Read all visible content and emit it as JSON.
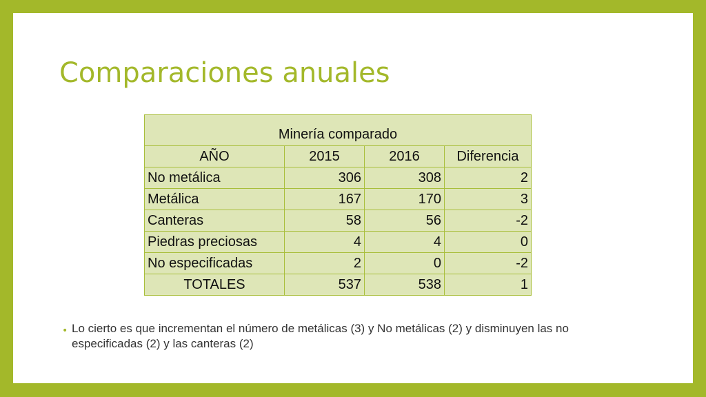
{
  "title": "Comparaciones anuales",
  "table": {
    "caption": "Minería  comparado",
    "headers": [
      "AÑO",
      "2015",
      "2016",
      "Diferencia"
    ],
    "rows": [
      {
        "label": "No metálica",
        "y2015": "306",
        "y2016": "308",
        "diff": "2"
      },
      {
        "label": "Metálica",
        "y2015": "167",
        "y2016": "170",
        "diff": "3"
      },
      {
        "label": "Canteras",
        "y2015": "58",
        "y2016": "56",
        "diff": "-2"
      },
      {
        "label": "Piedras preciosas",
        "y2015": "4",
        "y2016": "4",
        "diff": "0"
      },
      {
        "label": "No especificadas",
        "y2015": "2",
        "y2016": "0",
        "diff": "-2"
      }
    ],
    "totals": {
      "label": "TOTALES",
      "y2015": "537",
      "y2016": "538",
      "diff": "1"
    }
  },
  "bullet": {
    "symbol": "•",
    "text": "Lo cierto es que incrementan el número de metálicas (3) y No metálicas (2) y disminuyen las no especificadas (2) y las canteras (2)"
  },
  "colors": {
    "accent": "#a3b82a",
    "cell_background": "#dee6b7",
    "border": "#a8be3a"
  }
}
